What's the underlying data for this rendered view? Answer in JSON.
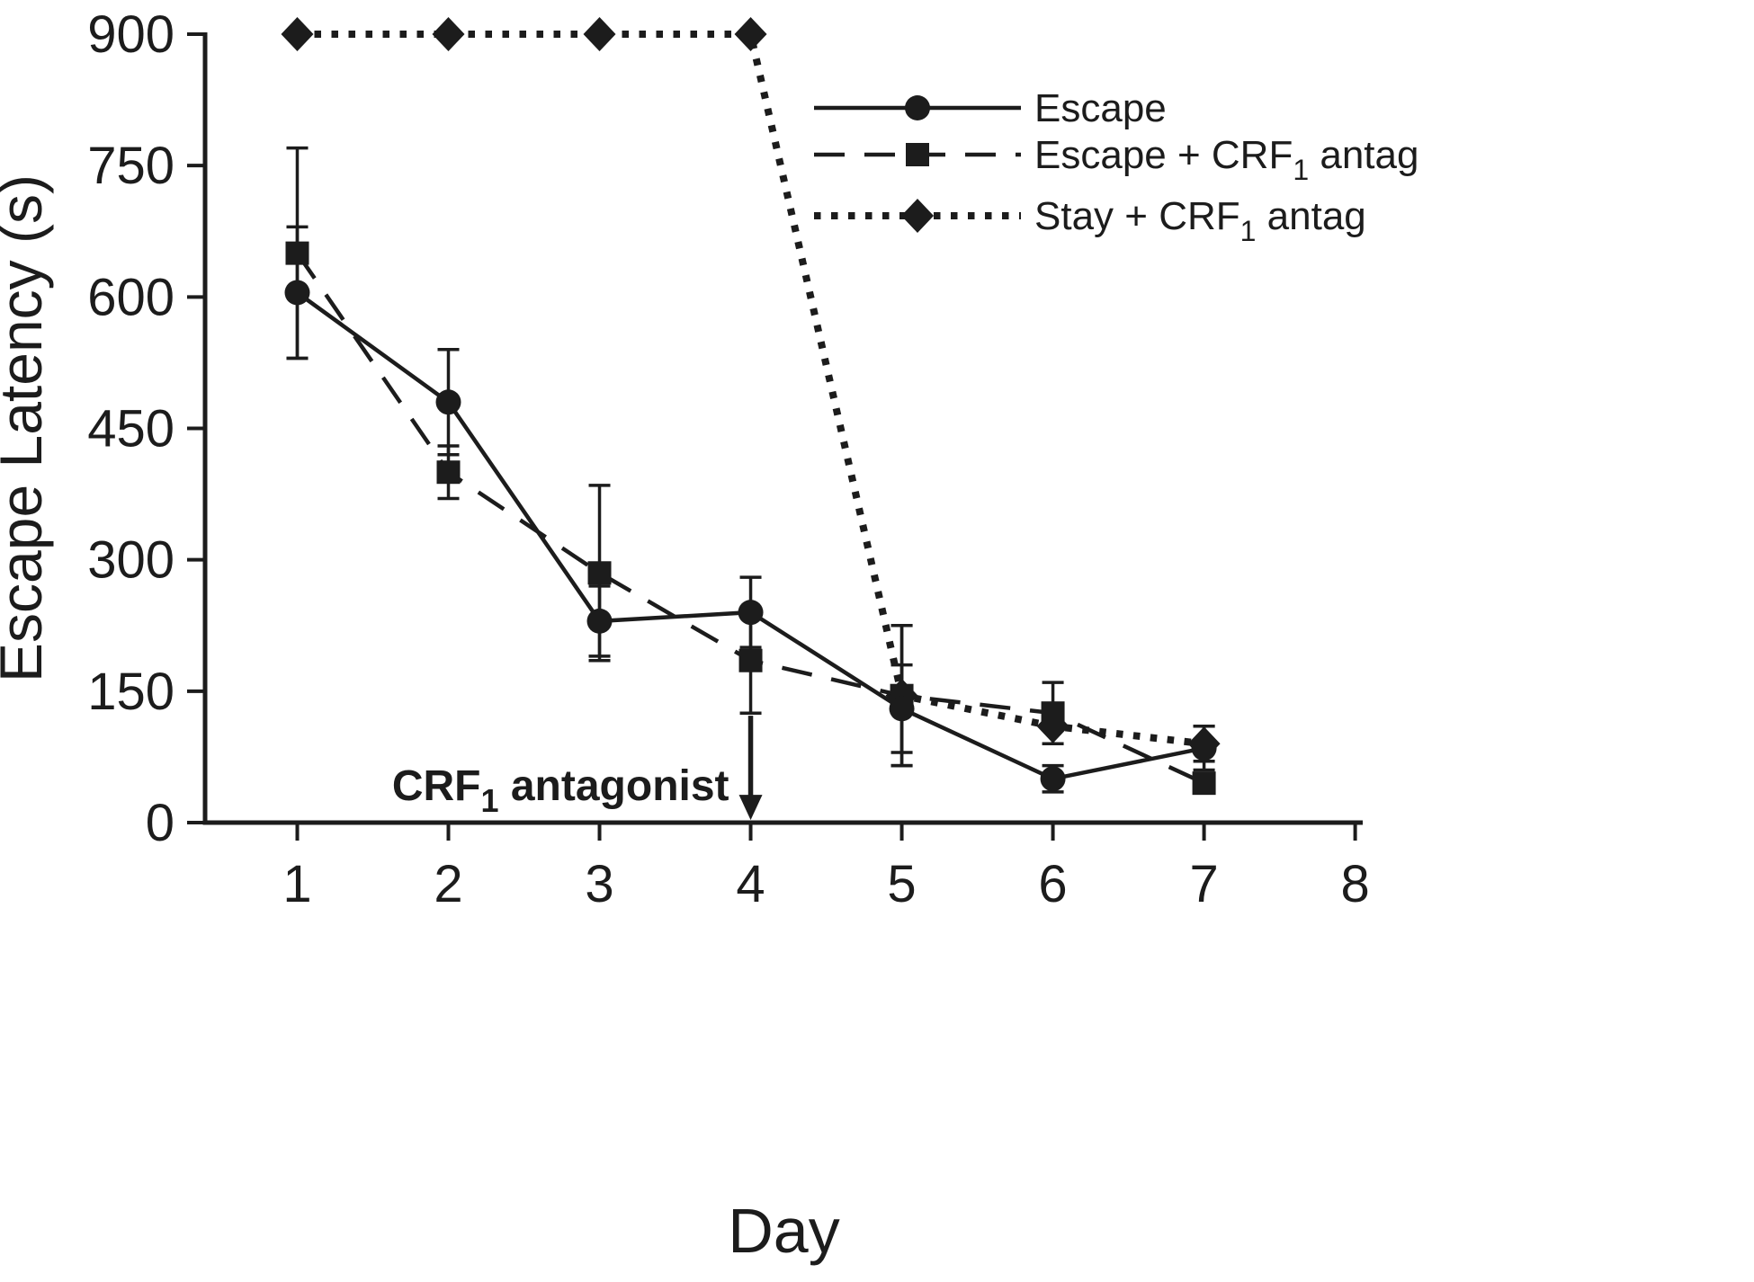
{
  "figure": {
    "background": "#ffffff",
    "ink": "#1c1c1c"
  },
  "chart_data": {
    "type": "line",
    "title": "",
    "xlabel": "Day",
    "ylabel": "Escape Latency (s)",
    "x": [
      1,
      2,
      3,
      4,
      5,
      6,
      7
    ],
    "xticks": [
      1,
      2,
      3,
      4,
      5,
      6,
      7,
      8
    ],
    "yticks": [
      0,
      150,
      300,
      450,
      600,
      750,
      900
    ],
    "xlim": [
      0.39,
      8.05
    ],
    "ylim": [
      0,
      900
    ],
    "grid": false,
    "legend_position": "upper-right",
    "series": [
      {
        "name": "Escape",
        "label_parts": [
          {
            "t": "Escape"
          }
        ],
        "marker": "circle",
        "line_style": "solid",
        "values": [
          605,
          480,
          230,
          240,
          130,
          50,
          85
        ],
        "errors": [
          75,
          60,
          40,
          40,
          50,
          15,
          25
        ]
      },
      {
        "name": "Escape + CRF1 antag",
        "label_parts": [
          {
            "t": "Escape + CRF"
          },
          {
            "t": "1",
            "sub": true
          },
          {
            "t": " antag"
          }
        ],
        "marker": "square",
        "line_style": "dashed",
        "values": [
          650,
          400,
          285,
          185,
          145,
          125,
          45
        ],
        "errors": [
          120,
          30,
          100,
          60,
          80,
          35,
          0
        ]
      },
      {
        "name": "Stay + CRF1 antag",
        "label_parts": [
          {
            "t": "Stay + CRF"
          },
          {
            "t": "1",
            "sub": true
          },
          {
            "t": " antag"
          }
        ],
        "marker": "diamond",
        "line_style": "dotted",
        "values": [
          900,
          900,
          900,
          900,
          145,
          110,
          90
        ],
        "errors": [
          0,
          0,
          0,
          0,
          80,
          0,
          20
        ]
      }
    ],
    "annotation": {
      "parts": [
        {
          "t": "CRF"
        },
        {
          "t": "1",
          "sub": true
        },
        {
          "t": " antagonist"
        }
      ],
      "x": 4,
      "arrow_from_y": 122,
      "arrow_to_y": 3
    }
  }
}
